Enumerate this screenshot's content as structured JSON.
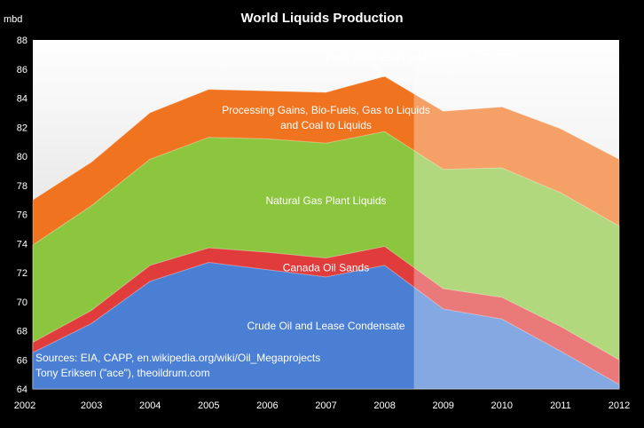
{
  "chart_data": {
    "type": "area",
    "title": "World Liquids Production",
    "ylabel": "mbd",
    "xlabel": "",
    "ylim": [
      64,
      88
    ],
    "y_ticks": [
      64,
      66,
      68,
      70,
      72,
      74,
      76,
      78,
      80,
      82,
      84,
      86,
      88
    ],
    "categories": [
      "2002",
      "2003",
      "2004",
      "2005",
      "2006",
      "2007",
      "2008",
      "2009",
      "2010",
      "2011",
      "2012"
    ],
    "stacked": true,
    "grid": false,
    "series": [
      {
        "name": "Crude Oil and Lease Condensate",
        "color": "#4a7fd4",
        "cumulative_top": [
          66.5,
          68.5,
          71.4,
          72.7,
          72.2,
          71.7,
          72.5,
          69.5,
          68.8,
          66.6,
          64.3
        ]
      },
      {
        "name": "Canada Oil Sands",
        "color": "#e03c3c",
        "cumulative_top": [
          67.2,
          69.4,
          72.5,
          73.7,
          73.4,
          73.0,
          73.8,
          70.9,
          70.3,
          68.3,
          66.0
        ]
      },
      {
        "name": "Natural Gas Plant Liquids",
        "color": "#8cc63f",
        "cumulative_top": [
          73.9,
          76.6,
          79.8,
          81.3,
          81.2,
          80.9,
          81.7,
          79.1,
          79.2,
          77.5,
          75.2
        ]
      },
      {
        "name": "Processing Gains, Bio-Fuels, Gas to Liquids and Coal to Liquids",
        "label_lines": [
          "Processing Gains, Bio-Fuels, Gas to Liquids",
          "and Coal to Liquids"
        ],
        "color": "#f07420",
        "cumulative_top": [
          77.0,
          79.6,
          83.0,
          84.6,
          84.5,
          84.4,
          85.5,
          83.1,
          83.4,
          81.9,
          79.8
        ]
      }
    ],
    "annotations": {
      "peak": "Peak 2008 85.47 mbd",
      "forecast": "Forecast",
      "forecast_start": "2008.5",
      "sources_line1": "Sources: EIA, CAPP, en.wikipedia.org/wiki/Oil_Megaprojects",
      "sources_line2": "Tony Eriksen (\"ace\"), theoildrum.com"
    }
  }
}
